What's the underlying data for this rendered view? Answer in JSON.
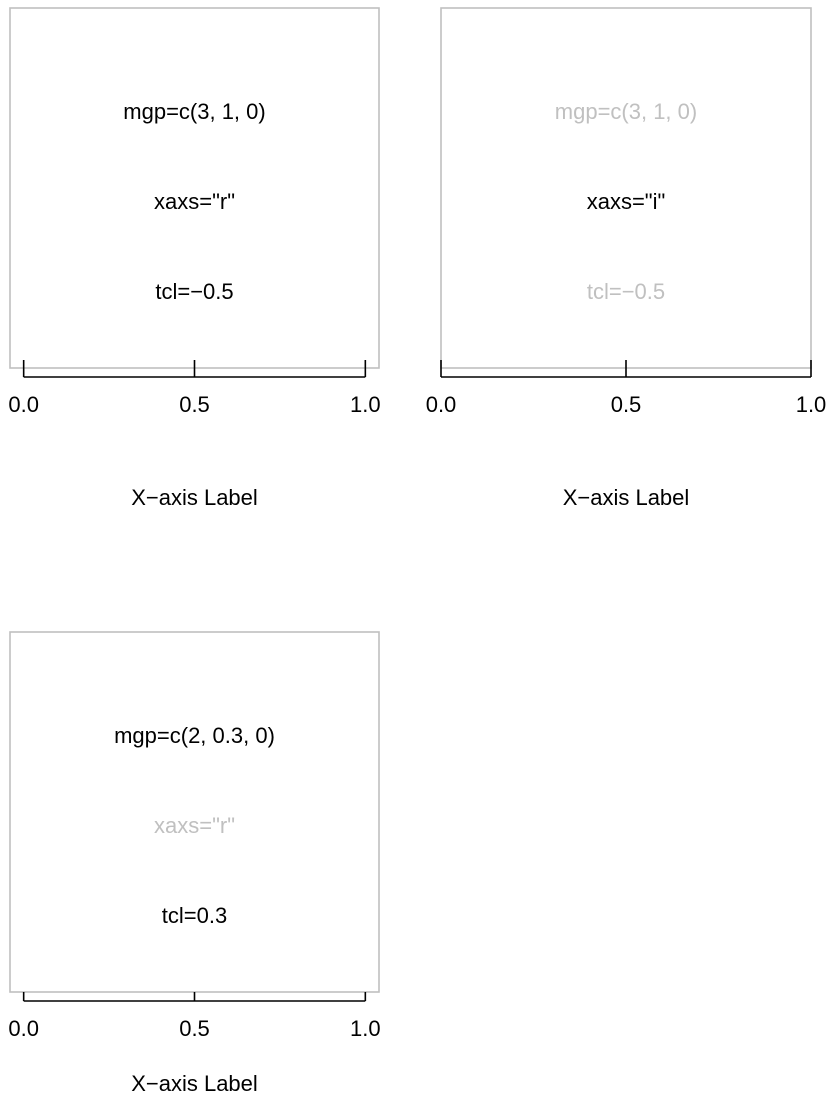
{
  "chart_data": [
    {
      "type": "axis-demo",
      "annotations": [
        {
          "text": "mgp=c(3, 1, 0)",
          "color": "#000000"
        },
        {
          "text": "xaxs=\"r\"",
          "color": "#000000"
        },
        {
          "text": "tcl=−0.5",
          "color": "#000000"
        }
      ],
      "ticks": [
        {
          "value": 0.0,
          "label": "0.0"
        },
        {
          "value": 0.5,
          "label": "0.5"
        },
        {
          "value": 1.0,
          "label": "1.0"
        }
      ],
      "xlabel": "X−axis Label",
      "xlim": [
        0,
        1
      ],
      "xaxs": "r",
      "tcl": -0.5,
      "mgp": [
        3,
        1,
        0
      ]
    },
    {
      "type": "axis-demo",
      "annotations": [
        {
          "text": "mgp=c(3, 1, 0)",
          "color": "#c0c0c0"
        },
        {
          "text": "xaxs=\"i\"",
          "color": "#000000"
        },
        {
          "text": "tcl=−0.5",
          "color": "#c0c0c0"
        }
      ],
      "ticks": [
        {
          "value": 0.0,
          "label": "0.0"
        },
        {
          "value": 0.5,
          "label": "0.5"
        },
        {
          "value": 1.0,
          "label": "1.0"
        }
      ],
      "xlabel": "X−axis Label",
      "xlim": [
        0,
        1
      ],
      "xaxs": "i",
      "tcl": -0.5,
      "mgp": [
        3,
        1,
        0
      ]
    },
    {
      "type": "axis-demo",
      "annotations": [
        {
          "text": "mgp=c(2, 0.3, 0)",
          "color": "#000000"
        },
        {
          "text": "xaxs=\"r\"",
          "color": "#c0c0c0"
        },
        {
          "text": "tcl=0.3",
          "color": "#000000"
        }
      ],
      "ticks": [
        {
          "value": 0.0,
          "label": "0.0"
        },
        {
          "value": 0.5,
          "label": "0.5"
        },
        {
          "value": 1.0,
          "label": "1.0"
        }
      ],
      "xlabel": "X−axis Label",
      "xlim": [
        0,
        1
      ],
      "xaxs": "r",
      "tcl": 0.3,
      "mgp": [
        2,
        0.3,
        0
      ]
    }
  ],
  "colors": {
    "box": "#c0c0c0",
    "axis": "#000000",
    "dim_text": "#c0c0c0",
    "text": "#000000"
  }
}
